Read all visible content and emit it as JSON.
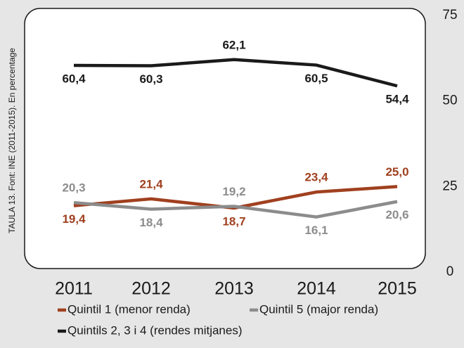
{
  "chart_data": {
    "type": "line",
    "note": "TAULA 13. Font: INE (2011-2015). En percentage",
    "categories": [
      "2011",
      "2012",
      "2013",
      "2014",
      "2015"
    ],
    "ylim": [
      0,
      75
    ],
    "yticks": [
      0,
      25,
      50,
      75
    ],
    "series": [
      {
        "name": "Quintil 1 (menor renda)",
        "color": "#a0401f",
        "values": [
          19.4,
          21.4,
          18.7,
          23.4,
          25.0
        ],
        "value_labels": [
          "19,4",
          "21,4",
          "18,7",
          "23,4",
          "25,0"
        ]
      },
      {
        "name": "Quintil 5 (major renda)",
        "color": "#8c8c8c",
        "values": [
          20.3,
          18.4,
          19.2,
          16.1,
          20.6
        ],
        "value_labels": [
          "20,3",
          "18,4",
          "19,2",
          "16,1",
          "20,6"
        ]
      },
      {
        "name": "Quintils 2, 3 i 4 (rendes mitjanes)",
        "color": "#1a1a1a",
        "values": [
          60.4,
          60.3,
          62.1,
          60.5,
          54.4
        ],
        "value_labels": [
          "60,4",
          "60,3",
          "62,1",
          "60,5",
          "54,4"
        ]
      }
    ]
  }
}
